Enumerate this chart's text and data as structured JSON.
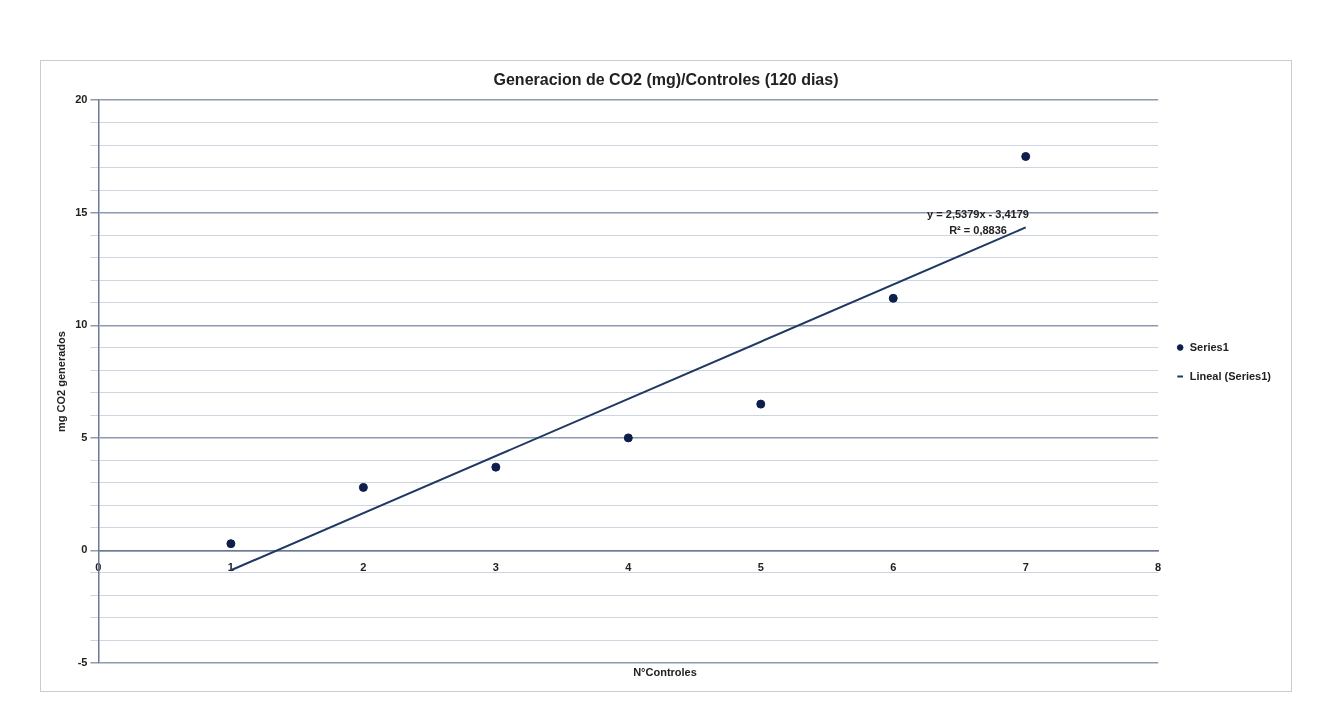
{
  "chart_data": {
    "type": "scatter",
    "title": "Generacion de CO2 (mg)/Controles (120 dias)",
    "xlabel": "N°Controles",
    "ylabel": "mg CO2 generados",
    "x": [
      1,
      2,
      3,
      4,
      5,
      6,
      7
    ],
    "series": [
      {
        "name": "Series1",
        "color": "#0d1f4a",
        "values": [
          0.3,
          2.8,
          3.7,
          5.0,
          6.5,
          11.2,
          17.5
        ],
        "marker": "circle"
      },
      {
        "name": "Lineal (Series1)",
        "type": "line",
        "color": "#1f3864",
        "x": [
          1,
          7
        ],
        "values": [
          -0.88,
          14.35
        ],
        "marker": "none",
        "line_style": "solid"
      }
    ],
    "xlim": [
      0,
      8
    ],
    "xticks": [
      0,
      1,
      2,
      3,
      4,
      5,
      6,
      7,
      8
    ],
    "ylim": [
      -5,
      20
    ],
    "yticks": [
      -5,
      {
        "value": -4,
        "label": null
      },
      {
        "value": -3,
        "label": null
      },
      {
        "value": -2,
        "label": null
      },
      {
        "value": -1,
        "label": null
      },
      0,
      {
        "value": 1,
        "label": null
      },
      {
        "value": 2,
        "label": null
      },
      {
        "value": 3,
        "label": null
      },
      {
        "value": 4,
        "label": null
      },
      5,
      {
        "value": 6,
        "label": null
      },
      {
        "value": 7,
        "label": null
      },
      {
        "value": 8,
        "label": null
      },
      {
        "value": 9,
        "label": null
      },
      10,
      {
        "value": 11,
        "label": null
      },
      {
        "value": 12,
        "label": null
      },
      {
        "value": 13,
        "label": null
      },
      {
        "value": 14,
        "label": null
      },
      15,
      {
        "value": 16,
        "label": null
      },
      {
        "value": 17,
        "label": null
      },
      {
        "value": 18,
        "label": null
      },
      {
        "value": 19,
        "label": null
      },
      20
    ],
    "grid": "y",
    "legend": "right",
    "annotations": [
      "y = 2,5379x - 3,4179",
      "R² = 0,8836"
    ]
  }
}
